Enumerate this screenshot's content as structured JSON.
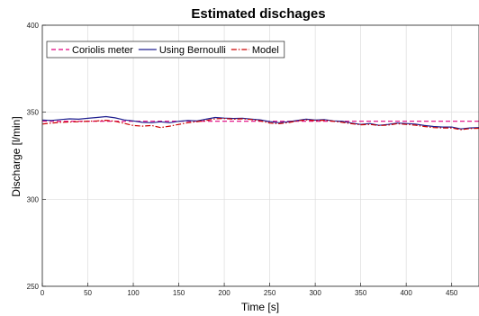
{
  "chart_data": {
    "type": "line",
    "title": "Estimated dischages",
    "xlabel": "Time [s]",
    "ylabel": "Discharge [l/min]",
    "xlim": [
      0,
      480
    ],
    "ylim": [
      250,
      400
    ],
    "xticks": [
      0,
      50,
      100,
      150,
      200,
      250,
      300,
      350,
      400,
      450
    ],
    "yticks": [
      250,
      300,
      350,
      400
    ],
    "grid": true,
    "legend_position": "top-left",
    "series": [
      {
        "name": "Coriolis meter",
        "color": "#e0007f",
        "style": "dashed",
        "x": [
          0,
          480
        ],
        "y": [
          344.8,
          344.8
        ]
      },
      {
        "name": "Using Bernoulli",
        "color": "#1f1f8f",
        "style": "solid",
        "x": [
          0,
          10,
          20,
          30,
          40,
          50,
          60,
          70,
          80,
          90,
          100,
          110,
          120,
          130,
          140,
          150,
          160,
          170,
          180,
          190,
          200,
          210,
          220,
          230,
          240,
          250,
          260,
          270,
          280,
          290,
          300,
          310,
          320,
          330,
          340,
          350,
          360,
          370,
          380,
          390,
          400,
          410,
          420,
          430,
          440,
          450,
          460,
          470,
          480
        ],
        "y": [
          345.5,
          345.3,
          345.8,
          346.2,
          346.0,
          346.5,
          347.0,
          347.5,
          346.8,
          345.6,
          345.0,
          344.2,
          344.0,
          344.5,
          344.0,
          344.8,
          345.2,
          345.0,
          346.0,
          347.0,
          346.6,
          346.4,
          346.5,
          346.0,
          345.6,
          344.6,
          344.0,
          344.5,
          345.2,
          346.0,
          345.5,
          345.8,
          345.0,
          344.8,
          343.8,
          343.0,
          343.5,
          342.5,
          343.0,
          343.8,
          343.5,
          343.2,
          342.4,
          341.8,
          341.5,
          341.5,
          340.4,
          341.0,
          341.2
        ]
      },
      {
        "name": "Model",
        "color": "#cc0000",
        "style": "dashdot",
        "x": [
          0,
          10,
          20,
          30,
          40,
          50,
          60,
          70,
          80,
          90,
          100,
          110,
          120,
          130,
          140,
          150,
          160,
          170,
          180,
          190,
          200,
          210,
          220,
          230,
          240,
          250,
          260,
          270,
          280,
          290,
          300,
          310,
          320,
          330,
          340,
          350,
          360,
          370,
          380,
          390,
          400,
          410,
          420,
          430,
          440,
          450,
          460,
          470,
          480
        ],
        "y": [
          343.2,
          343.8,
          344.2,
          344.4,
          344.6,
          344.8,
          345.0,
          345.4,
          344.8,
          343.6,
          342.4,
          342.0,
          342.4,
          341.2,
          342.0,
          343.0,
          344.0,
          344.6,
          345.2,
          346.2,
          346.4,
          346.0,
          346.2,
          345.8,
          345.0,
          343.8,
          343.4,
          344.0,
          345.0,
          345.6,
          345.2,
          345.4,
          344.8,
          344.2,
          343.4,
          342.8,
          343.0,
          342.4,
          342.6,
          343.4,
          343.0,
          342.6,
          341.8,
          341.2,
          341.0,
          341.0,
          340.0,
          340.6,
          340.8
        ]
      }
    ]
  }
}
